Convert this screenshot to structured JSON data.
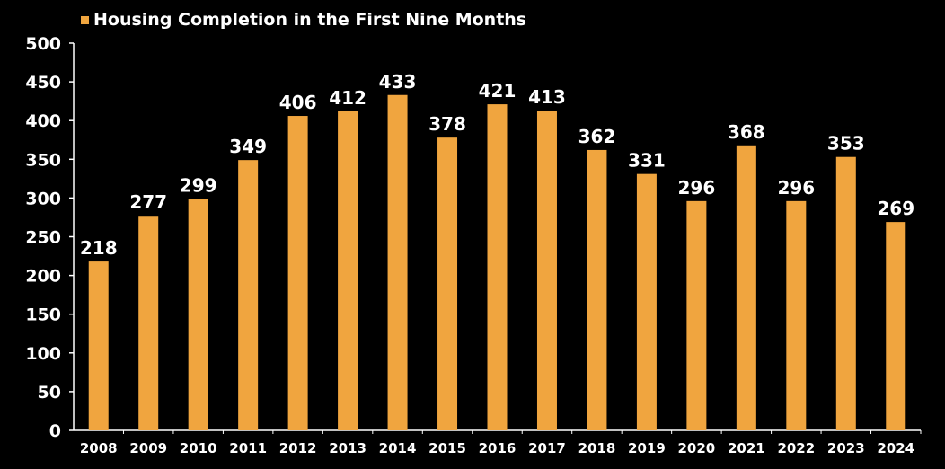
{
  "chart_data": {
    "type": "bar",
    "legend": "Housing Completion in the First Nine Months",
    "legend_position": "top-left",
    "categories": [
      "2008",
      "2009",
      "2010",
      "2011",
      "2012",
      "2013",
      "2014",
      "2015",
      "2016",
      "2017",
      "2018",
      "2019",
      "2020",
      "2021",
      "2022",
      "2023",
      "2024"
    ],
    "series": [
      {
        "name": "Housing Completion in the First Nine Months",
        "values": [
          218,
          277,
          299,
          349,
          406,
          412,
          433,
          378,
          421,
          413,
          362,
          331,
          296,
          368,
          296,
          353,
          269
        ]
      }
    ],
    "ylim": [
      0,
      500
    ],
    "yticks": [
      0,
      50,
      100,
      150,
      200,
      250,
      300,
      350,
      400,
      450,
      500
    ],
    "grid": false,
    "data_labels": true
  },
  "colors": {
    "background": "#000000",
    "bar": "#F0A53F",
    "axis": "#ffffff",
    "text": "#ffffff"
  }
}
